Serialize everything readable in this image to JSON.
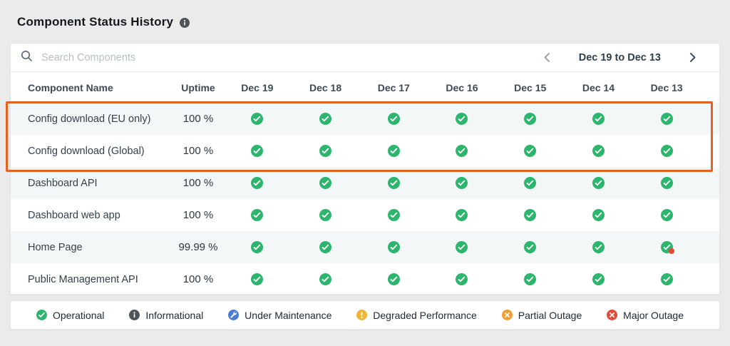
{
  "page": {
    "title": "Component Status History"
  },
  "search": {
    "placeholder": "Search Components"
  },
  "date_nav": {
    "label": "Dec 19 to Dec 13"
  },
  "table": {
    "name_header": "Component Name",
    "uptime_header": "Uptime",
    "date_headers": [
      "Dec 19",
      "Dec 18",
      "Dec 17",
      "Dec 16",
      "Dec 15",
      "Dec 14",
      "Dec 13"
    ],
    "rows": [
      {
        "name": "Config download (EU only)",
        "uptime": "100 %",
        "statuses": [
          "operational",
          "operational",
          "operational",
          "operational",
          "operational",
          "operational",
          "operational"
        ]
      },
      {
        "name": "Config download (Global)",
        "uptime": "100 %",
        "statuses": [
          "operational",
          "operational",
          "operational",
          "operational",
          "operational",
          "operational",
          "operational"
        ]
      },
      {
        "name": "Dashboard API",
        "uptime": "100 %",
        "statuses": [
          "operational",
          "operational",
          "operational",
          "operational",
          "operational",
          "operational",
          "operational"
        ]
      },
      {
        "name": "Dashboard web app",
        "uptime": "100 %",
        "statuses": [
          "operational",
          "operational",
          "operational",
          "operational",
          "operational",
          "operational",
          "operational"
        ]
      },
      {
        "name": "Home Page",
        "uptime": "99.99 %",
        "statuses": [
          "operational",
          "operational",
          "operational",
          "operational",
          "operational",
          "operational",
          "operational_with_incident"
        ]
      },
      {
        "name": "Public Management API",
        "uptime": "100 %",
        "statuses": [
          "operational",
          "operational",
          "operational",
          "operational",
          "operational",
          "operational",
          "operational"
        ]
      }
    ]
  },
  "legend": [
    {
      "label": "Operational",
      "icon": "check-circle",
      "color": "#2db56e"
    },
    {
      "label": "Informational",
      "icon": "info-circle",
      "color": "#4e5358"
    },
    {
      "label": "Under Maintenance",
      "icon": "wrench-circle",
      "color": "#4a7dd6"
    },
    {
      "label": "Degraded Performance",
      "icon": "exclamation-circle",
      "color": "#edb638"
    },
    {
      "label": "Partial Outage",
      "icon": "x-circle",
      "color": "#f09e2f"
    },
    {
      "label": "Major Outage",
      "icon": "x-circle",
      "color": "#e24a3b"
    }
  ],
  "annotation": {
    "color": "#e8611c",
    "covers_rows": [
      0,
      1
    ]
  },
  "colors": {
    "operational": "#2db56e",
    "incident_dot": "#e8473c",
    "info_badge": "#4e5358",
    "chevron_left": "#9ba4ac",
    "chevron_right": "#3d4f61",
    "search_icon": "#5f6b76"
  }
}
